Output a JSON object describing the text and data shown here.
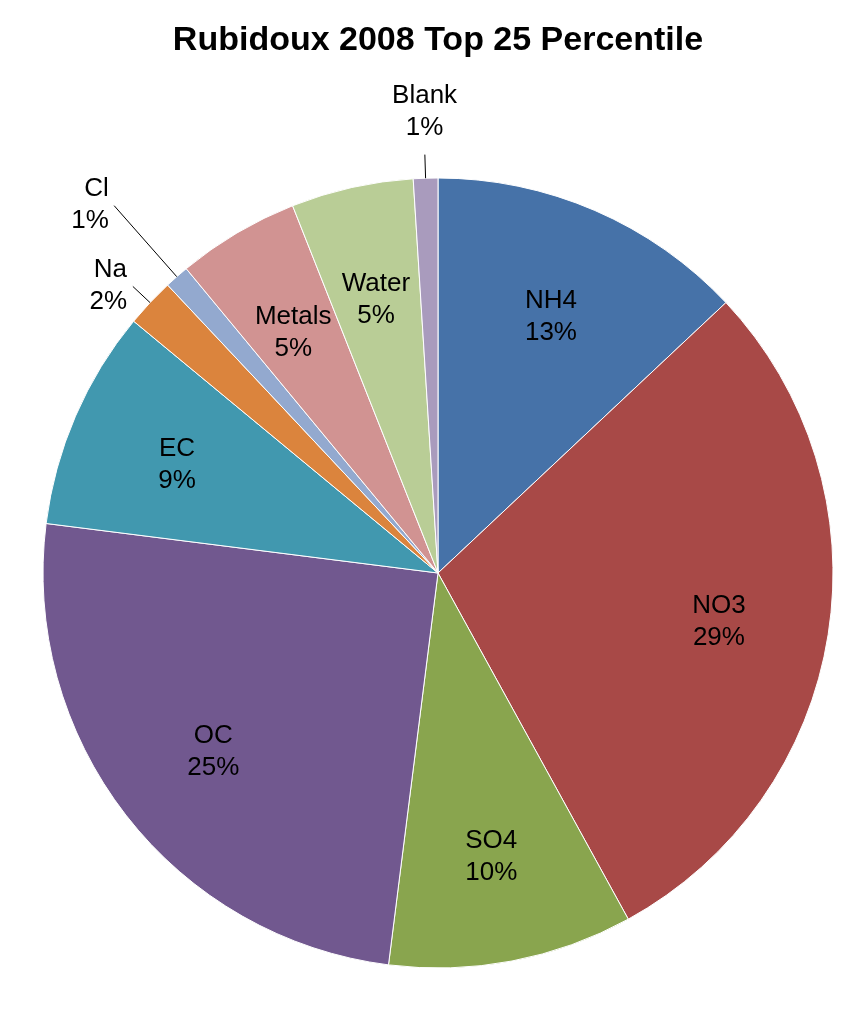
{
  "chart_data": {
    "type": "pie",
    "title": "Rubidoux 2008 Top 25 Percentile",
    "categories": [
      "NH4",
      "NO3",
      "SO4",
      "OC",
      "EC",
      "Na",
      "Cl",
      "Metals",
      "Water",
      "Blank"
    ],
    "values": [
      13,
      29,
      10,
      25,
      9,
      2,
      1,
      5,
      5,
      1
    ],
    "value_labels": [
      "13%",
      "29%",
      "10%",
      "25%",
      "9%",
      "2%",
      "1%",
      "5%",
      "5%",
      "1%"
    ],
    "colors": [
      "#4672a8",
      "#a84947",
      "#89a54e",
      "#71588f",
      "#4198af",
      "#db843d",
      "#93a9cf",
      "#d19392",
      "#b9cd96",
      "#a99bbd"
    ],
    "legend": false
  }
}
